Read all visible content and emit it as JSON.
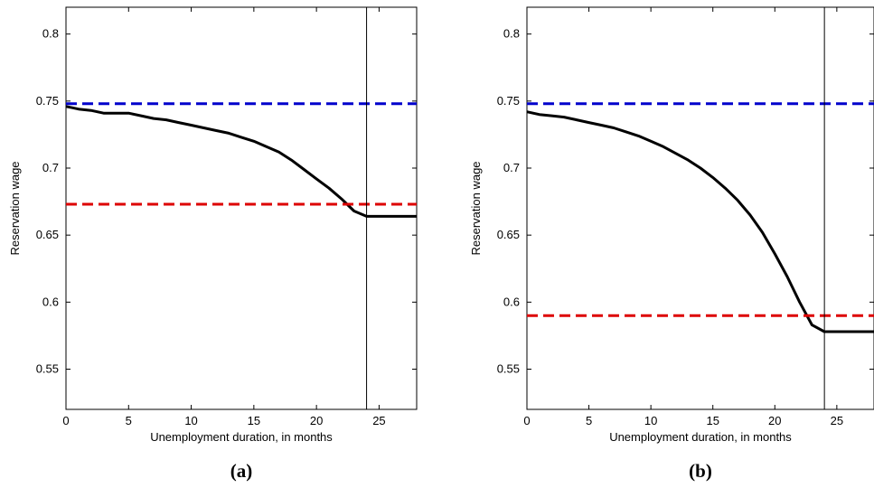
{
  "chart_data": [
    {
      "type": "line",
      "caption": "(a)",
      "xlabel": "Unemployment duration, in months",
      "ylabel": "Reservation wage",
      "xlim": [
        0,
        28
      ],
      "ylim": [
        0.52,
        0.82
      ],
      "xticks": [
        0,
        5,
        10,
        15,
        20,
        25
      ],
      "yticks": [
        0.55,
        0.6,
        0.65,
        0.7,
        0.75,
        0.8
      ],
      "grid": false,
      "vline": 24,
      "series": [
        {
          "color": "#000000",
          "style": "solid",
          "x": [
            0,
            0.5,
            1,
            2,
            3,
            4,
            5,
            6,
            7,
            8,
            9,
            10,
            11,
            12,
            13,
            14,
            15,
            16,
            17,
            18,
            19,
            20,
            21,
            22,
            23,
            24,
            28
          ],
          "y": [
            0.746,
            0.745,
            0.744,
            0.743,
            0.741,
            0.741,
            0.741,
            0.739,
            0.737,
            0.736,
            0.734,
            0.732,
            0.73,
            0.728,
            0.726,
            0.723,
            0.72,
            0.716,
            0.712,
            0.706,
            0.699,
            0.692,
            0.685,
            0.677,
            0.668,
            0.664,
            0.664
          ]
        },
        {
          "color": "#0000cc",
          "style": "dashed",
          "x": [
            0,
            28
          ],
          "y": [
            0.748,
            0.748
          ]
        },
        {
          "color": "#dd0000",
          "style": "dashed",
          "x": [
            0,
            28
          ],
          "y": [
            0.673,
            0.673
          ]
        }
      ]
    },
    {
      "type": "line",
      "caption": "(b)",
      "xlabel": "Unemployment duration, in months",
      "ylabel": "Reservation wage",
      "xlim": [
        0,
        28
      ],
      "ylim": [
        0.52,
        0.82
      ],
      "xticks": [
        0,
        5,
        10,
        15,
        20,
        25
      ],
      "yticks": [
        0.55,
        0.6,
        0.65,
        0.7,
        0.75,
        0.8
      ],
      "grid": false,
      "vline": 24,
      "series": [
        {
          "color": "#000000",
          "style": "solid",
          "x": [
            0,
            1,
            2,
            3,
            4,
            5,
            6,
            7,
            8,
            9,
            10,
            11,
            12,
            13,
            14,
            15,
            16,
            17,
            18,
            19,
            20,
            21,
            22,
            23,
            24,
            28
          ],
          "y": [
            0.742,
            0.74,
            0.739,
            0.738,
            0.736,
            0.734,
            0.732,
            0.73,
            0.727,
            0.724,
            0.72,
            0.716,
            0.711,
            0.706,
            0.7,
            0.693,
            0.685,
            0.676,
            0.665,
            0.652,
            0.636,
            0.619,
            0.6,
            0.583,
            0.578,
            0.578
          ]
        },
        {
          "color": "#0000cc",
          "style": "dashed",
          "x": [
            0,
            28
          ],
          "y": [
            0.748,
            0.748
          ]
        },
        {
          "color": "#dd0000",
          "style": "dashed",
          "x": [
            0,
            28
          ],
          "y": [
            0.59,
            0.59
          ]
        }
      ]
    }
  ]
}
